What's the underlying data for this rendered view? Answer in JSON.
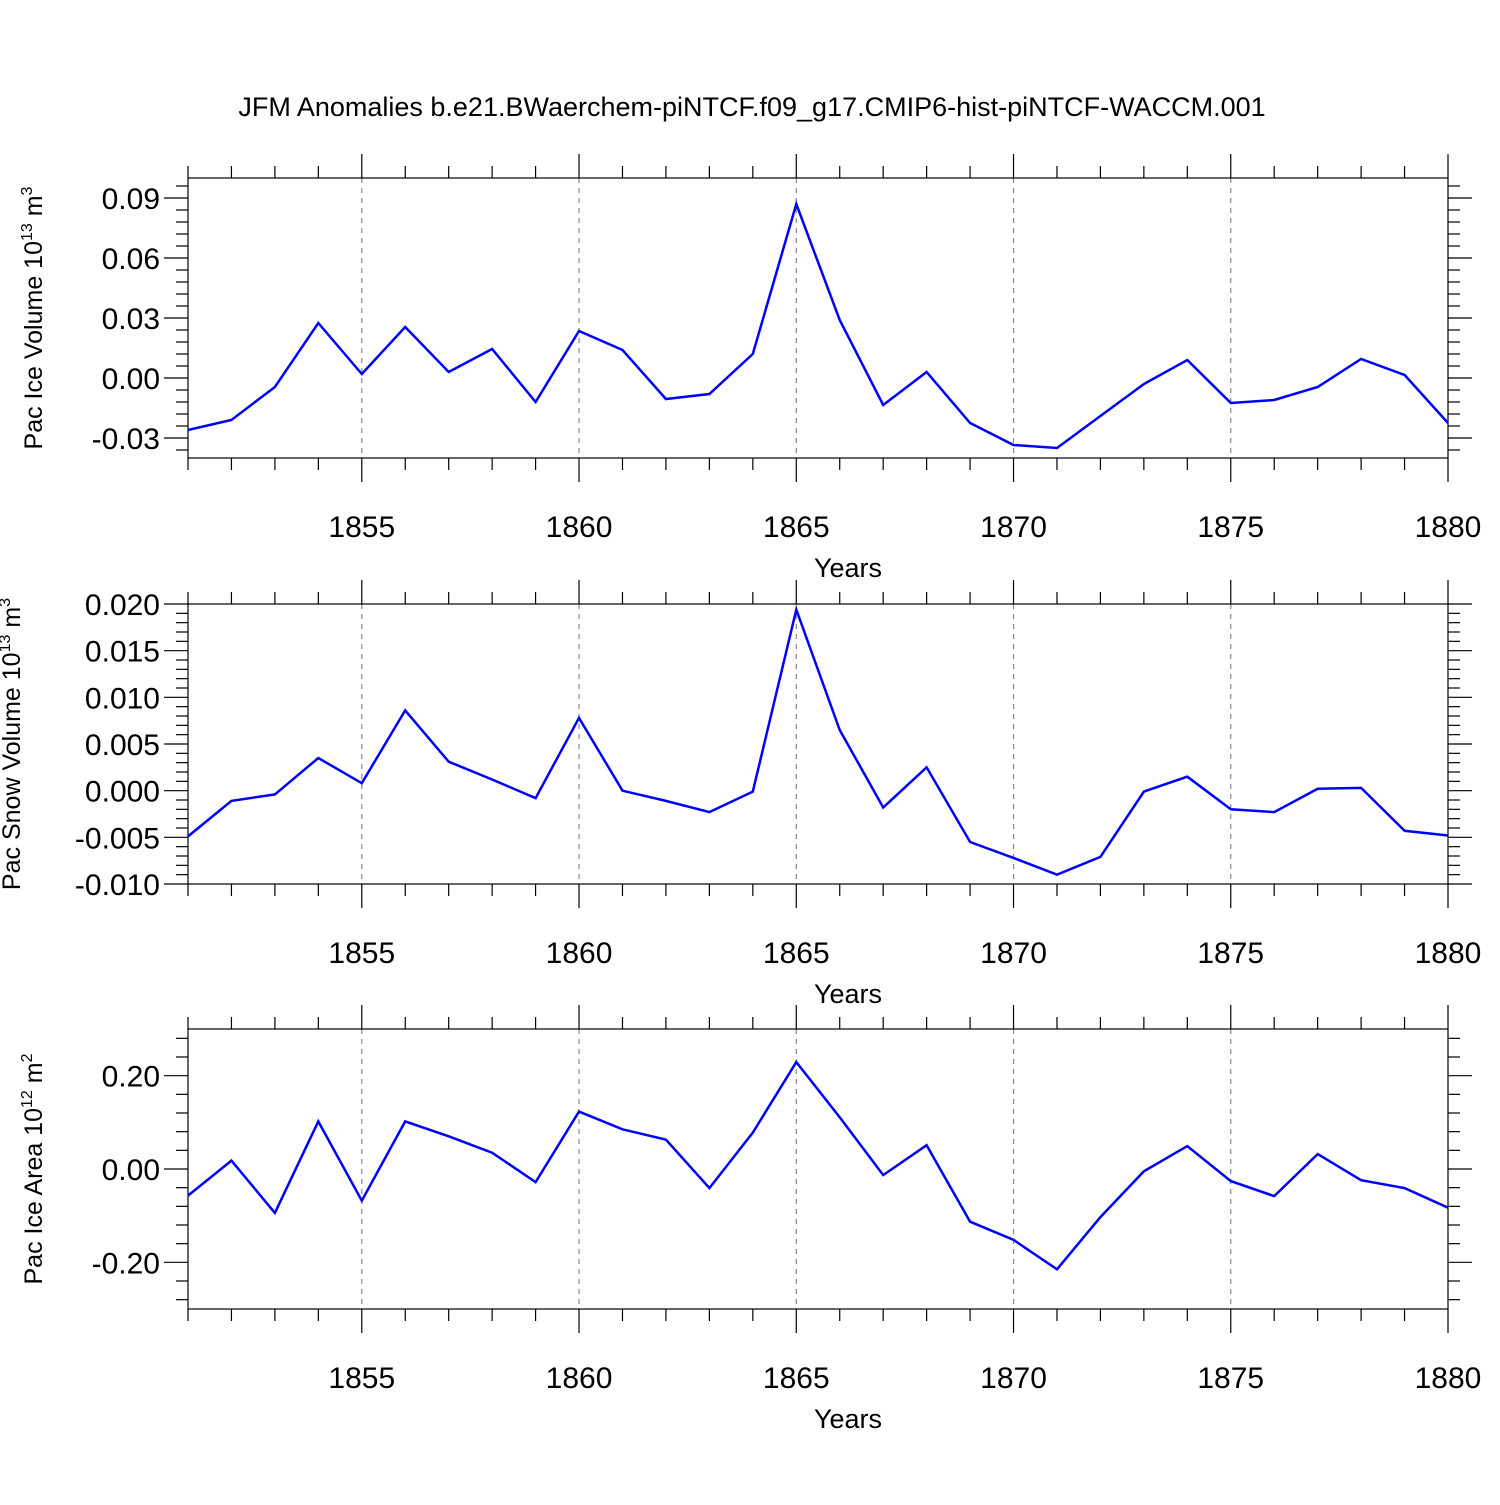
{
  "title": "JFM Anomalies b.e21.BWaerchem-piNTCF.f09_g17.CMIP6-hist-piNTCF-WACCM.001",
  "line_color": "#0000ff",
  "chart_data": [
    {
      "type": "line",
      "ylabel_text": "Pac Ice Volume 10",
      "ylabel_exponent": "13",
      "ylabel_unit": " m",
      "ylabel_unit_exponent": "3",
      "xlabel": "Years",
      "xlim": [
        1851,
        1880
      ],
      "ylim": [
        -0.04,
        0.1
      ],
      "xticks": [
        1855,
        1860,
        1865,
        1870,
        1875,
        1880
      ],
      "xtick_labels": [
        "1855",
        "1860",
        "1865",
        "1870",
        "1875",
        "1880"
      ],
      "yticks": [
        -0.03,
        0.0,
        0.03,
        0.06,
        0.09
      ],
      "ytick_labels": [
        "-0.03",
        "0.00",
        "0.03",
        "0.06",
        "0.09"
      ],
      "series": [
        {
          "name": "Pac Ice Volume",
          "x": [
            1851,
            1852,
            1853,
            1854,
            1855,
            1856,
            1857,
            1858,
            1859,
            1860,
            1861,
            1862,
            1863,
            1864,
            1865,
            1866,
            1867,
            1868,
            1869,
            1870,
            1871,
            1872,
            1873,
            1874,
            1875,
            1876,
            1877,
            1878,
            1879,
            1880
          ],
          "values": [
            -0.026,
            -0.021,
            -0.0045,
            0.0275,
            0.002,
            0.0255,
            0.003,
            0.0145,
            -0.012,
            0.0235,
            0.014,
            -0.0105,
            -0.008,
            0.012,
            0.087,
            0.029,
            -0.0135,
            0.003,
            -0.0225,
            -0.0335,
            -0.035,
            -0.019,
            -0.003,
            0.009,
            -0.0125,
            -0.011,
            -0.0045,
            0.0095,
            0.0015,
            -0.0225
          ]
        }
      ]
    },
    {
      "type": "line",
      "ylabel_text": "Pac Snow Volume 10",
      "ylabel_exponent": "13",
      "ylabel_unit": " m",
      "ylabel_unit_exponent": "3",
      "xlabel": "Years",
      "xlim": [
        1851,
        1880
      ],
      "ylim": [
        -0.01,
        0.02
      ],
      "xticks": [
        1855,
        1860,
        1865,
        1870,
        1875,
        1880
      ],
      "xtick_labels": [
        "1855",
        "1860",
        "1865",
        "1870",
        "1875",
        "1880"
      ],
      "yticks": [
        -0.01,
        -0.005,
        0.0,
        0.005,
        0.01,
        0.015,
        0.02
      ],
      "ytick_labels": [
        "-0.010",
        "-0.005",
        "0.000",
        "0.005",
        "0.010",
        "0.015",
        "0.020"
      ],
      "series": [
        {
          "name": "Pac Snow Volume",
          "x": [
            1851,
            1852,
            1853,
            1854,
            1855,
            1856,
            1857,
            1858,
            1859,
            1860,
            1861,
            1862,
            1863,
            1864,
            1865,
            1866,
            1867,
            1868,
            1869,
            1870,
            1871,
            1872,
            1873,
            1874,
            1875,
            1876,
            1877,
            1878,
            1879,
            1880
          ],
          "values": [
            -0.0049,
            -0.0011,
            -0.0004,
            0.0035,
            0.0008,
            0.0086,
            0.0031,
            0.0012,
            -0.0008,
            0.0078,
            0.0,
            -0.0011,
            -0.0023,
            -0.0001,
            0.0194,
            0.0065,
            -0.0018,
            0.0025,
            -0.0055,
            -0.0072,
            -0.009,
            -0.0071,
            -0.0001,
            0.0015,
            -0.002,
            -0.0023,
            0.0002,
            0.0003,
            -0.0043,
            -0.0048
          ]
        }
      ]
    },
    {
      "type": "line",
      "ylabel_text": "Pac Ice Area 10",
      "ylabel_exponent": "12",
      "ylabel_unit": " m",
      "ylabel_unit_exponent": "2",
      "xlabel": "Years",
      "xlim": [
        1851,
        1880
      ],
      "ylim": [
        -0.3,
        0.3
      ],
      "xticks": [
        1855,
        1860,
        1865,
        1870,
        1875,
        1880
      ],
      "xtick_labels": [
        "1855",
        "1860",
        "1865",
        "1870",
        "1875",
        "1880"
      ],
      "yticks": [
        -0.2,
        0.0,
        0.2
      ],
      "ytick_labels": [
        "-0.20",
        "0.00",
        "0.20"
      ],
      "series": [
        {
          "name": "Pac Ice Area",
          "x": [
            1851,
            1852,
            1853,
            1854,
            1855,
            1856,
            1857,
            1858,
            1859,
            1860,
            1861,
            1862,
            1863,
            1864,
            1865,
            1866,
            1867,
            1868,
            1869,
            1870,
            1871,
            1872,
            1873,
            1874,
            1875,
            1876,
            1877,
            1878,
            1879,
            1880
          ],
          "values": [
            -0.057,
            0.018,
            -0.094,
            0.102,
            -0.068,
            0.102,
            0.07,
            0.035,
            -0.028,
            0.123,
            0.085,
            0.063,
            -0.041,
            0.078,
            0.229,
            0.111,
            -0.013,
            0.051,
            -0.113,
            -0.152,
            -0.215,
            -0.103,
            -0.005,
            0.049,
            -0.026,
            -0.058,
            0.032,
            -0.024,
            -0.041,
            -0.083
          ]
        }
      ]
    }
  ]
}
